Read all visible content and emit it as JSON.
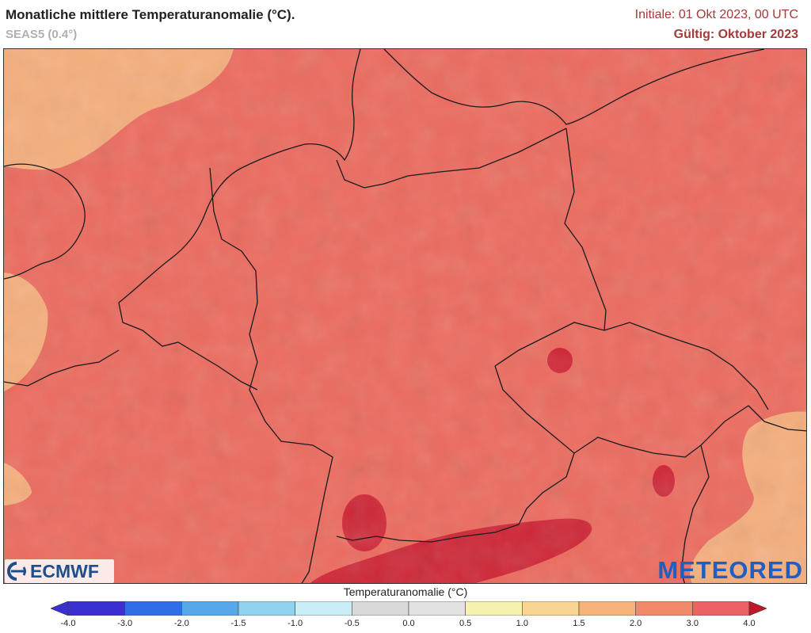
{
  "header": {
    "title": "Monatliche mittlere Temperaturanomalie (°C).",
    "subtitle": "SEAS5 (0.4°)",
    "initial": "Initiale: 01 Okt 2023, 00 UTC",
    "valid": "Gültig: Oktober 2023"
  },
  "logos": {
    "left": "ECMWF",
    "right": "METEORED"
  },
  "legend": {
    "title": "Temperaturanomalie (°C)",
    "ticks": [
      "-4.0",
      "-3.0",
      "-2.0",
      "-1.5",
      "-1.0",
      "-0.5",
      "0.0",
      "0.5",
      "1.0",
      "1.5",
      "2.0",
      "3.0",
      "4.0"
    ],
    "colors": [
      "#3a2fd0",
      "#2f6ee8",
      "#57a8ea",
      "#8fd3f0",
      "#c9eef7",
      "#d9d9d9",
      "#e2e2e2",
      "#f7f2b0",
      "#f8d690",
      "#f6b47a",
      "#f08a6a",
      "#ec6262",
      "#c0182a"
    ]
  },
  "colors": {
    "band_2_3": "#ec6a5e",
    "band_1_5_2": "#f6ae7c",
    "band_3_4": "#cf2636",
    "border_line": "#1a1a1a"
  }
}
